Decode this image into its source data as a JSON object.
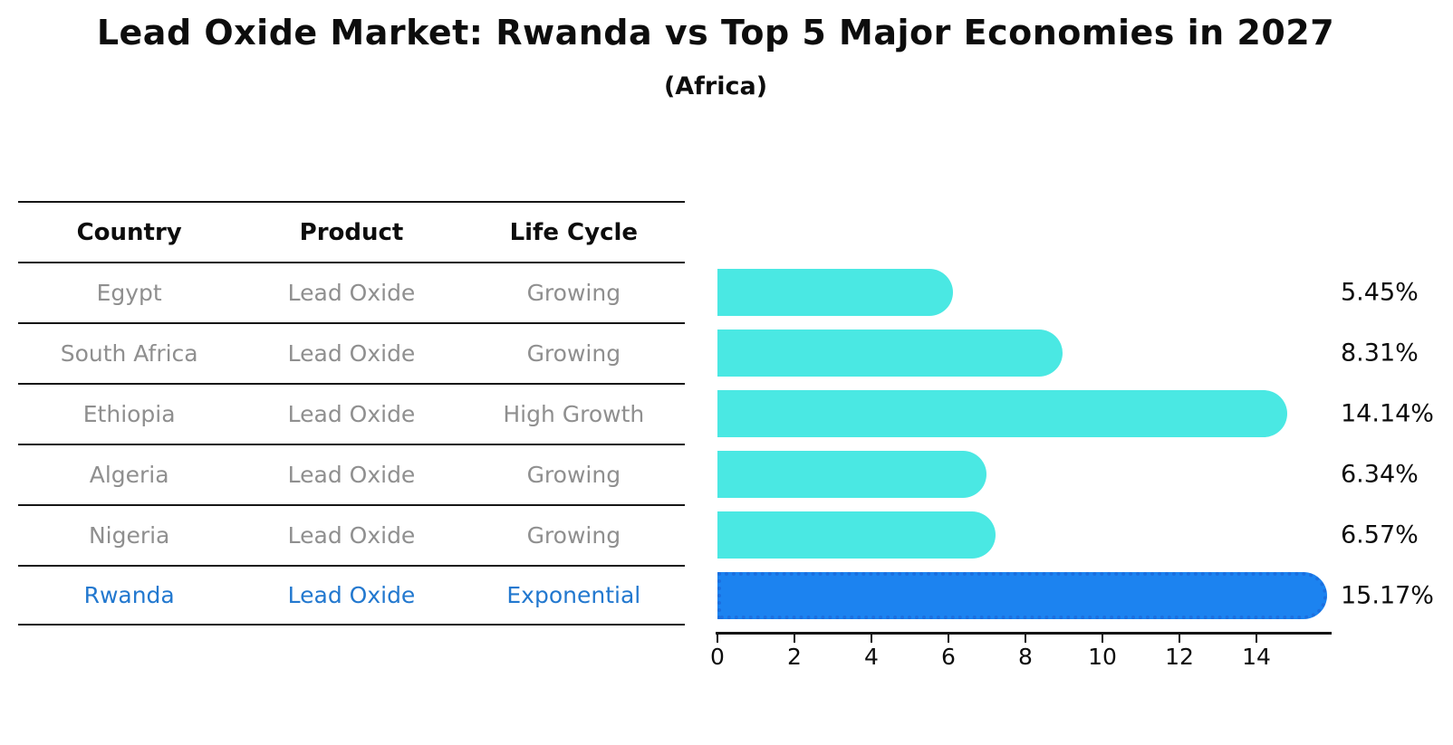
{
  "header": {
    "title": "Lead Oxide Market: Rwanda vs Top 5 Major Economies in 2027",
    "subtitle": "(Africa)"
  },
  "table": {
    "columns": [
      "Country",
      "Product",
      "Life Cycle"
    ],
    "rows": [
      {
        "cells": [
          "Egypt",
          "Lead Oxide",
          "Growing"
        ],
        "highlight": false
      },
      {
        "cells": [
          "South Africa",
          "Lead Oxide",
          "Growing"
        ],
        "highlight": false
      },
      {
        "cells": [
          "Ethiopia",
          "Lead Oxide",
          "High Growth"
        ],
        "highlight": false
      },
      {
        "cells": [
          "Algeria",
          "Lead Oxide",
          "Growing"
        ],
        "highlight": false
      },
      {
        "cells": [
          "Nigeria",
          "Lead Oxide",
          "Growing"
        ],
        "highlight": false
      },
      {
        "cells": [
          "Rwanda",
          "Lead Oxide",
          "Exponential"
        ],
        "highlight": true
      }
    ]
  },
  "chart_data": {
    "type": "bar",
    "orientation": "horizontal",
    "title": "Lead Oxide Market: Rwanda vs Top 5 Major Economies in 2027",
    "subtitle": "(Africa)",
    "categories": [
      "Egypt",
      "South Africa",
      "Ethiopia",
      "Algeria",
      "Nigeria",
      "Rwanda"
    ],
    "values": [
      5.45,
      8.31,
      14.14,
      6.34,
      6.57,
      15.17
    ],
    "value_labels": [
      "5.45%",
      "8.31%",
      "14.14%",
      "6.34%",
      "6.57%",
      "15.17%"
    ],
    "highlight_index": 5,
    "x_ticks": [
      0,
      2,
      4,
      6,
      8,
      10,
      12,
      14
    ],
    "xlim": [
      0,
      16
    ],
    "grid": false,
    "legend": "none",
    "colors": {
      "bar": "#4AE8E3",
      "highlight_bar": "#1C83F0",
      "highlight_bar_border": "#1B6FDF",
      "row_text": "#8F8F8F",
      "highlight_text": "#2278CF",
      "value_text": "#0D0D0D"
    }
  }
}
